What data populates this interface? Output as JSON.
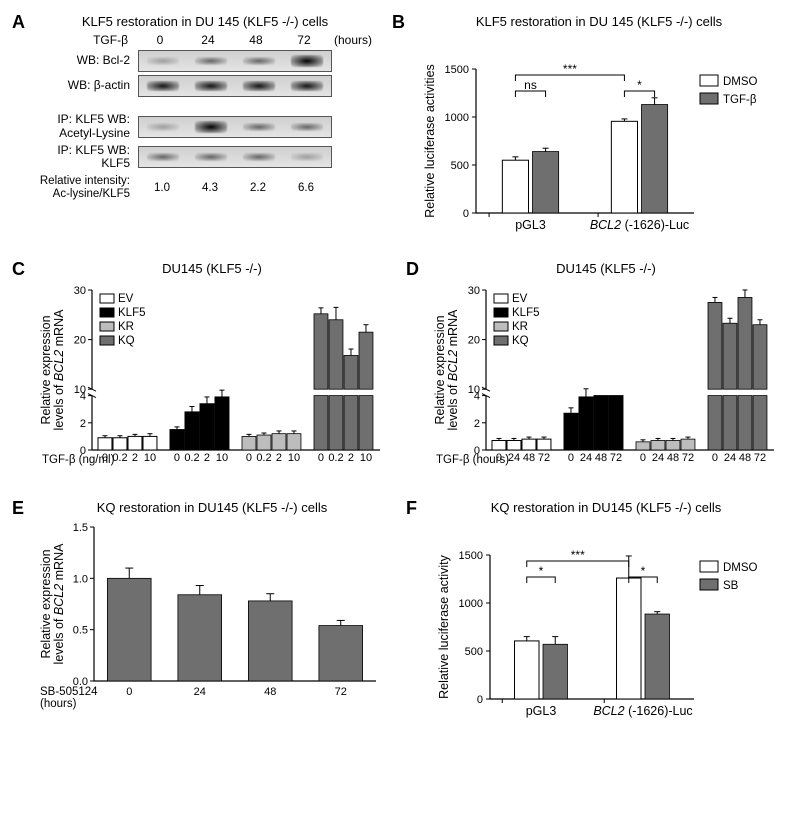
{
  "colors": {
    "white": "#ffffff",
    "dgrey": "#6f6f6f",
    "lgrey": "#bdbdbd",
    "black": "#000000"
  },
  "font": {
    "family": "Arial",
    "title_size": 13,
    "axis_size": 11,
    "label_size": 12.5,
    "panel_label_size": 18
  },
  "panelA": {
    "label": "A",
    "title": "KLF5 restoration in DU 145 (KLF5 -/-) cells",
    "x_axis_label": "TGF-β",
    "timepoints": [
      "0",
      "24",
      "48",
      "72"
    ],
    "unit": "(hours)",
    "rows": [
      {
        "label": "WB: Bcl-2",
        "intensity": [
          "faint",
          "medium",
          "medium",
          "verystrong"
        ]
      },
      {
        "label": "WB: β-actin",
        "intensity": [
          "strong",
          "strong",
          "strong",
          "strong"
        ],
        "actin": true
      },
      {
        "label": "IP: KLF5 WB:\nAcetyl-Lysine",
        "intensity": [
          "faint",
          "verystrong",
          "medium",
          "medium"
        ]
      },
      {
        "label": "IP: KLF5 WB:\nKLF5",
        "intensity": [
          "medium",
          "medium",
          "medium",
          "faint"
        ]
      }
    ],
    "relative_label": "Relative intensity:\nAc-lysine/KLF5",
    "relative_values": [
      "1.0",
      "4.3",
      "2.2",
      "6.6"
    ]
  },
  "panelB": {
    "label": "B",
    "title": "KLF5 restoration in DU 145 (KLF5 -/-) cells",
    "ylabel": "Relative luciferase activities",
    "ylim": [
      0,
      1500
    ],
    "ytick_step": 500,
    "legend": [
      {
        "label": "DMSO",
        "fill": "white"
      },
      {
        "label": "TGF-β",
        "fill": "dgrey"
      }
    ],
    "groups": [
      {
        "name": "pGL3",
        "italic": false,
        "bars": [
          {
            "v": 550,
            "e": 35,
            "fill": "white"
          },
          {
            "v": 640,
            "e": 35,
            "fill": "dgrey"
          }
        ]
      },
      {
        "name": "BCL2 (-1626)-Luc",
        "italic": true,
        "bars": [
          {
            "v": 955,
            "e": 25,
            "fill": "white"
          },
          {
            "v": 1130,
            "e": 70,
            "fill": "dgrey"
          }
        ]
      }
    ],
    "sig": [
      {
        "from": 0,
        "to": 1,
        "label": "ns"
      },
      {
        "from": 0,
        "to": 2,
        "label": "***"
      },
      {
        "from": 2,
        "to": 3,
        "label": "*"
      }
    ]
  },
  "panelC": {
    "label": "C",
    "title": "DU145 (KLF5 -/-)",
    "ylabel": "Relative expression\nlevels of BCL2 mRNA",
    "ylim": [
      0,
      30
    ],
    "yticks": [
      0,
      2,
      4,
      10,
      20,
      30
    ],
    "axis_break": true,
    "x_axis_label": "TGF-β (ng/ml)",
    "doses": [
      "0",
      "0.2",
      "2",
      "10"
    ],
    "legend": [
      {
        "label": "EV",
        "fill": "white"
      },
      {
        "label": "KLF5",
        "fill": "black"
      },
      {
        "label": "KR",
        "fill": "lgrey"
      },
      {
        "label": "KQ",
        "fill": "dgrey"
      }
    ],
    "series": [
      {
        "fill": "white",
        "vals": [
          0.9,
          0.9,
          1.0,
          1.0
        ],
        "err": [
          0.15,
          0.15,
          0.15,
          0.2
        ]
      },
      {
        "fill": "black",
        "vals": [
          1.5,
          2.8,
          3.4,
          3.9
        ],
        "err": [
          0.2,
          0.4,
          0.5,
          0.5
        ]
      },
      {
        "fill": "lgrey",
        "vals": [
          1.0,
          1.1,
          1.2,
          1.2
        ],
        "err": [
          0.15,
          0.15,
          0.2,
          0.2
        ]
      },
      {
        "fill": "dgrey",
        "vals": [
          25.2,
          24.0,
          16.8,
          21.5
        ],
        "err": [
          1.2,
          2.5,
          1.3,
          1.5
        ]
      }
    ]
  },
  "panelD": {
    "label": "D",
    "title": "DU145 (KLF5 -/-)",
    "ylabel": "Relative expression\nlevels of BCL2 mRNA",
    "ylim": [
      0,
      30
    ],
    "yticks": [
      0,
      2,
      4,
      10,
      20,
      30
    ],
    "axis_break": true,
    "x_axis_label": "TGF-β (hours)",
    "doses": [
      "0",
      "24",
      "48",
      "72"
    ],
    "legend": [
      {
        "label": "EV",
        "fill": "white"
      },
      {
        "label": "KLF5",
        "fill": "black"
      },
      {
        "label": "KR",
        "fill": "lgrey"
      },
      {
        "label": "KQ",
        "fill": "dgrey"
      }
    ],
    "series": [
      {
        "fill": "white",
        "vals": [
          0.7,
          0.7,
          0.8,
          0.8
        ],
        "err": [
          0.15,
          0.15,
          0.15,
          0.15
        ]
      },
      {
        "fill": "black",
        "vals": [
          2.7,
          3.9,
          4.9,
          4.3
        ],
        "err": [
          0.4,
          0.6,
          1.1,
          0.7
        ]
      },
      {
        "fill": "lgrey",
        "vals": [
          0.6,
          0.7,
          0.7,
          0.8
        ],
        "err": [
          0.15,
          0.15,
          0.15,
          0.15
        ]
      },
      {
        "fill": "dgrey",
        "vals": [
          27.5,
          23.3,
          28.5,
          23.0
        ],
        "err": [
          1.0,
          1.0,
          1.5,
          1.0
        ]
      }
    ]
  },
  "panelE": {
    "label": "E",
    "title": "KQ restoration in DU145 (KLF5 -/-) cells",
    "ylabel": "Relative expression\nlevels of BCL2 mRNA",
    "ylim": [
      0,
      1.5
    ],
    "ytick_step": 0.5,
    "x_axis_label": "SB-505124\n(hours)",
    "x": [
      "0",
      "24",
      "48",
      "72"
    ],
    "bars": [
      {
        "v": 1.0,
        "e": 0.1
      },
      {
        "v": 0.84,
        "e": 0.09
      },
      {
        "v": 0.78,
        "e": 0.07
      },
      {
        "v": 0.54,
        "e": 0.05
      }
    ],
    "fill": "dgrey"
  },
  "panelF": {
    "label": "F",
    "title": "KQ restoration in DU145 (KLF5 -/-) cells",
    "ylabel": "Relative luciferase activity",
    "ylim": [
      0,
      1500
    ],
    "ytick_step": 500,
    "legend": [
      {
        "label": "DMSO",
        "fill": "white"
      },
      {
        "label": "SB",
        "fill": "dgrey"
      }
    ],
    "groups": [
      {
        "name": "pGL3",
        "italic": false,
        "bars": [
          {
            "v": 605,
            "e": 45,
            "fill": "white"
          },
          {
            "v": 570,
            "e": 80,
            "fill": "dgrey"
          }
        ]
      },
      {
        "name": "BCL2 (-1626)-Luc",
        "italic": true,
        "bars": [
          {
            "v": 1260,
            "e": 230,
            "fill": "white"
          },
          {
            "v": 885,
            "e": 25,
            "fill": "dgrey"
          }
        ]
      }
    ],
    "sig": [
      {
        "from": 0,
        "to": 1,
        "label": "*"
      },
      {
        "from": 0,
        "to": 2,
        "label": "***"
      },
      {
        "from": 2,
        "to": 3,
        "label": "*"
      }
    ]
  }
}
